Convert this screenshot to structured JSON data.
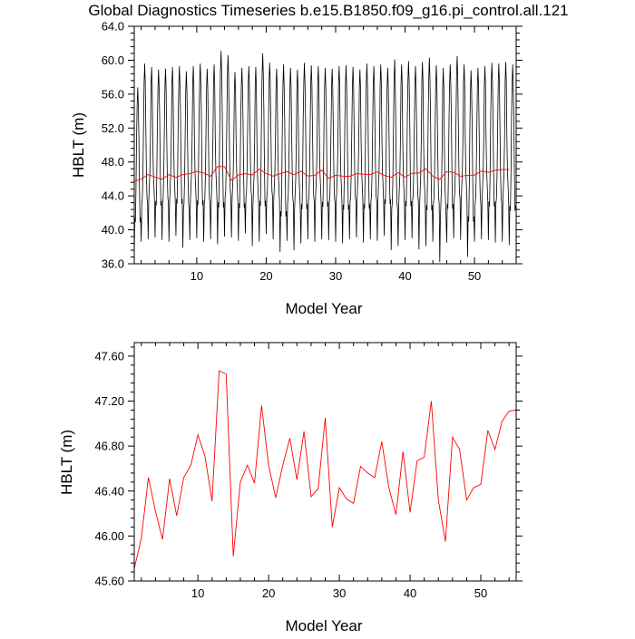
{
  "figure_title": "Global Diagnostics Timeseries b.e15.B1850.f09_g16.pi_control.all.121",
  "chart_data": [
    {
      "type": "line",
      "title": "Global Diagnostics Timeseries b.e15.B1850.f09_g16.pi_control.all.121",
      "xlabel": "Model Year",
      "ylabel": "HBLT (m)",
      "xlim": [
        1,
        56
      ],
      "ylim": [
        36.0,
        64.0
      ],
      "x_ticks": [
        10,
        20,
        30,
        40,
        50
      ],
      "x_tick_labels": [
        "10",
        "20",
        "30",
        "40",
        "50"
      ],
      "y_ticks": [
        36.0,
        40.0,
        44.0,
        48.0,
        52.0,
        56.0,
        60.0,
        64.0
      ],
      "y_tick_labels": [
        "36.0",
        "40.0",
        "44.0",
        "48.0",
        "52.0",
        "56.0",
        "60.0",
        "64.0"
      ],
      "grid": false,
      "series": [
        {
          "color": "#000000",
          "sampling": "monthly",
          "annual_max": [
            56.8,
            59.6,
            59.2,
            58.9,
            59.0,
            59.2,
            59.3,
            58.7,
            59.3,
            59.6,
            59.0,
            59.5,
            61.1,
            60.6,
            58.6,
            59.1,
            59.3,
            59.2,
            60.8,
            59.7,
            59.0,
            59.5,
            59.1,
            58.9,
            59.7,
            59.4,
            59.3,
            59.1,
            59.0,
            59.3,
            59.4,
            59.2,
            58.9,
            59.6,
            59.3,
            59.5,
            59.1,
            60.1,
            59.5,
            59.9,
            59.3,
            59.8,
            60.3,
            59.4,
            59.1,
            59.5,
            60.5,
            59.5,
            58.8,
            59.1,
            59.3,
            59.7,
            59.6,
            59.8,
            59.5
          ],
          "annual_min": [
            37.2,
            38.6,
            38.9,
            39.1,
            38.8,
            38.6,
            39.3,
            37.9,
            38.8,
            39.0,
            38.6,
            38.9,
            38.3,
            39.2,
            39.1,
            38.7,
            39.6,
            38.1,
            38.6,
            39.5,
            38.9,
            37.4,
            38.7,
            37.6,
            38.4,
            38.9,
            38.6,
            38.9,
            38.8,
            38.6,
            38.4,
            38.9,
            39.1,
            38.5,
            38.9,
            38.7,
            39.3,
            37.6,
            38.1,
            38.8,
            39.0,
            37.7,
            38.1,
            38.6,
            36.2,
            38.5,
            39.0,
            38.8,
            36.8,
            38.6,
            38.9,
            38.8,
            38.5,
            38.6,
            38.2
          ]
        },
        {
          "color": "#ff0000",
          "values": [
            45.71,
            45.98,
            46.52,
            46.22,
            45.97,
            46.51,
            46.18,
            46.52,
            46.63,
            46.9,
            46.71,
            46.31,
            47.47,
            47.44,
            45.82,
            46.48,
            46.63,
            46.47,
            47.16,
            46.63,
            46.34,
            46.63,
            46.87,
            46.5,
            46.93,
            46.35,
            46.42,
            47.05,
            46.08,
            46.43,
            46.33,
            46.29,
            46.62,
            46.56,
            46.52,
            46.84,
            46.43,
            46.19,
            46.75,
            46.21,
            46.67,
            46.7,
            47.2,
            46.32,
            45.95,
            46.88,
            46.77,
            46.32,
            46.43,
            46.46,
            46.94,
            46.77,
            47.02,
            47.11,
            47.12
          ]
        }
      ]
    },
    {
      "type": "line",
      "xlabel": "Model Year",
      "ylabel": "HBLT (m)",
      "xlim": [
        1,
        55
      ],
      "ylim": [
        45.6,
        47.72
      ],
      "x_ticks": [
        10,
        20,
        30,
        40,
        50
      ],
      "x_tick_labels": [
        "10",
        "20",
        "30",
        "40",
        "50"
      ],
      "y_ticks": [
        45.6,
        46.0,
        46.4,
        46.8,
        47.2,
        47.6
      ],
      "y_tick_labels": [
        "45.60",
        "46.00",
        "46.40",
        "46.80",
        "47.20",
        "47.60"
      ],
      "grid": false,
      "series": [
        {
          "color": "#ff0000",
          "x": [
            1,
            2,
            3,
            4,
            5,
            6,
            7,
            8,
            9,
            10,
            11,
            12,
            13,
            14,
            15,
            16,
            17,
            18,
            19,
            20,
            21,
            22,
            23,
            24,
            25,
            26,
            27,
            28,
            29,
            30,
            31,
            32,
            33,
            34,
            35,
            36,
            37,
            38,
            39,
            40,
            41,
            42,
            43,
            44,
            45,
            46,
            47,
            48,
            49,
            50,
            51,
            52,
            53,
            54,
            55
          ],
          "values": [
            45.71,
            45.98,
            46.52,
            46.22,
            45.97,
            46.51,
            46.18,
            46.52,
            46.63,
            46.9,
            46.71,
            46.31,
            47.47,
            47.44,
            45.82,
            46.48,
            46.63,
            46.47,
            47.16,
            46.63,
            46.34,
            46.63,
            46.87,
            46.5,
            46.93,
            46.35,
            46.42,
            47.05,
            46.08,
            46.43,
            46.33,
            46.29,
            46.62,
            46.56,
            46.52,
            46.84,
            46.43,
            46.19,
            46.75,
            46.21,
            46.67,
            46.7,
            47.2,
            46.32,
            45.95,
            46.88,
            46.77,
            46.32,
            46.43,
            46.46,
            46.94,
            46.77,
            47.02,
            47.11,
            47.12
          ]
        }
      ]
    }
  ]
}
